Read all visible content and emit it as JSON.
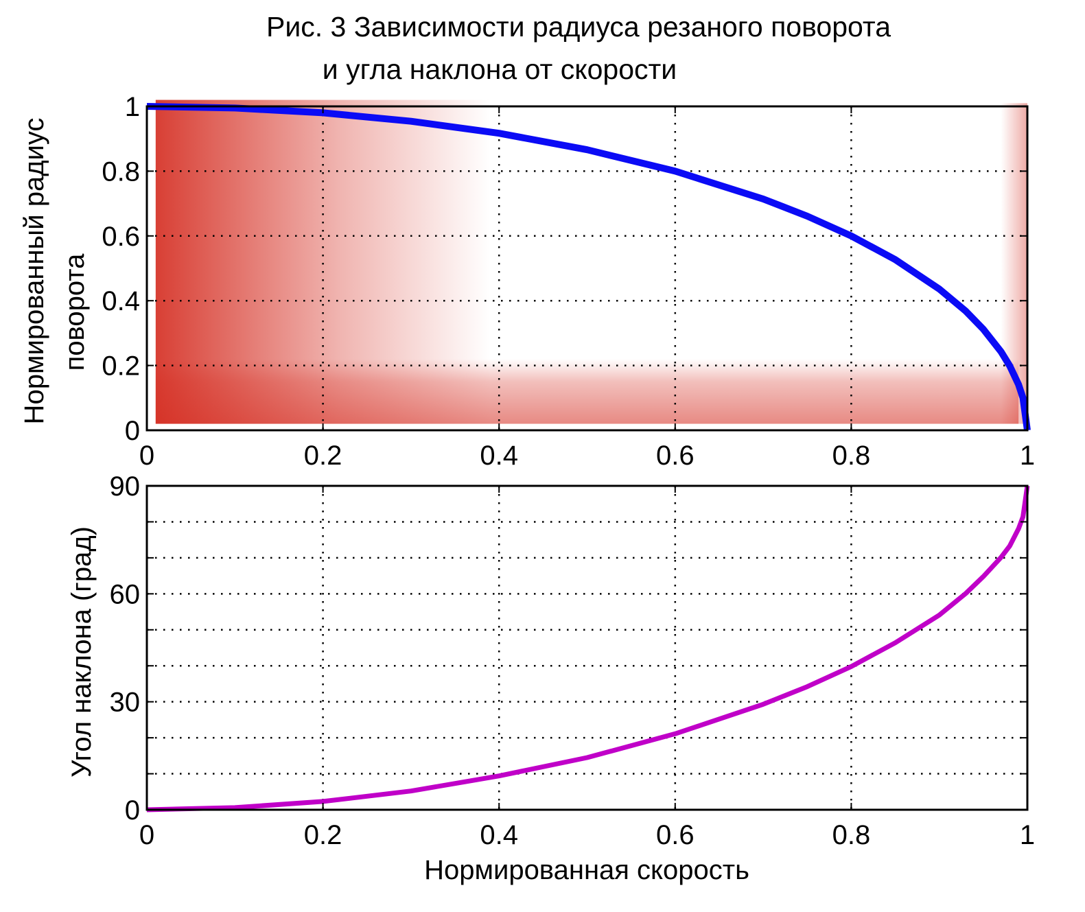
{
  "title_line1": "Рис. 3  Зависимости радиуса резаного поворота",
  "title_line2": "и угла наклона от скорости",
  "colors": {
    "radius_line": "#0b0bf5",
    "tilt_line": "#c000c8",
    "shade": "#d42a1e",
    "axes": "#000000",
    "grid": "#000000"
  },
  "chart_data": [
    {
      "type": "line",
      "ylabel_line1": "Нормированный радиус",
      "ylabel_line2": "поворота",
      "xlim": [
        0,
        1
      ],
      "ylim": [
        0,
        1
      ],
      "xticks": [
        "0",
        "0.2",
        "0.4",
        "0.6",
        "0.8",
        "1"
      ],
      "yticks": [
        "0",
        "0.2",
        "0.4",
        "0.6",
        "0.8",
        "1"
      ],
      "grid": true,
      "shaded_regions": [
        {
          "description": "left red gradient band",
          "x_range": [
            0.01,
            0.39
          ],
          "y_range": [
            0.02,
            1.02
          ]
        },
        {
          "description": "bottom red gradient band",
          "x_range": [
            0.01,
            0.99
          ],
          "y_range": [
            0.02,
            0.22
          ]
        },
        {
          "description": "right red gradient band",
          "x_range": [
            0.97,
            1.0
          ],
          "y_range": [
            0.02,
            1.01
          ]
        }
      ],
      "series": [
        {
          "x": [
            0,
            0.1,
            0.2,
            0.3,
            0.4,
            0.5,
            0.6,
            0.7,
            0.75,
            0.8,
            0.85,
            0.9,
            0.93,
            0.95,
            0.97,
            0.98,
            0.99,
            0.995,
            1.0
          ],
          "y": [
            1.0,
            0.995,
            0.98,
            0.954,
            0.917,
            0.866,
            0.8,
            0.714,
            0.661,
            0.6,
            0.527,
            0.436,
            0.368,
            0.312,
            0.243,
            0.199,
            0.141,
            0.1,
            0.0
          ]
        }
      ]
    },
    {
      "type": "line",
      "xlabel": "Нормированная скорость",
      "ylabel": "Угол наклона (град)",
      "xlim": [
        0,
        1
      ],
      "ylim": [
        0,
        90
      ],
      "xticks": [
        "0",
        "0.2",
        "0.4",
        "0.6",
        "0.8",
        "1"
      ],
      "yticks": [
        "0",
        "30",
        "60",
        "90"
      ],
      "grid": true,
      "series": [
        {
          "x": [
            0,
            0.1,
            0.2,
            0.3,
            0.4,
            0.5,
            0.6,
            0.7,
            0.75,
            0.8,
            0.85,
            0.9,
            0.93,
            0.95,
            0.97,
            0.98,
            0.99,
            0.995,
            1.0
          ],
          "y": [
            0,
            0.6,
            2.3,
            5.2,
            9.4,
            14.5,
            21.1,
            29.3,
            34.2,
            39.8,
            46.4,
            54.1,
            60.1,
            64.8,
            70.1,
            73.3,
            78.1,
            81.4,
            90
          ]
        }
      ]
    }
  ]
}
